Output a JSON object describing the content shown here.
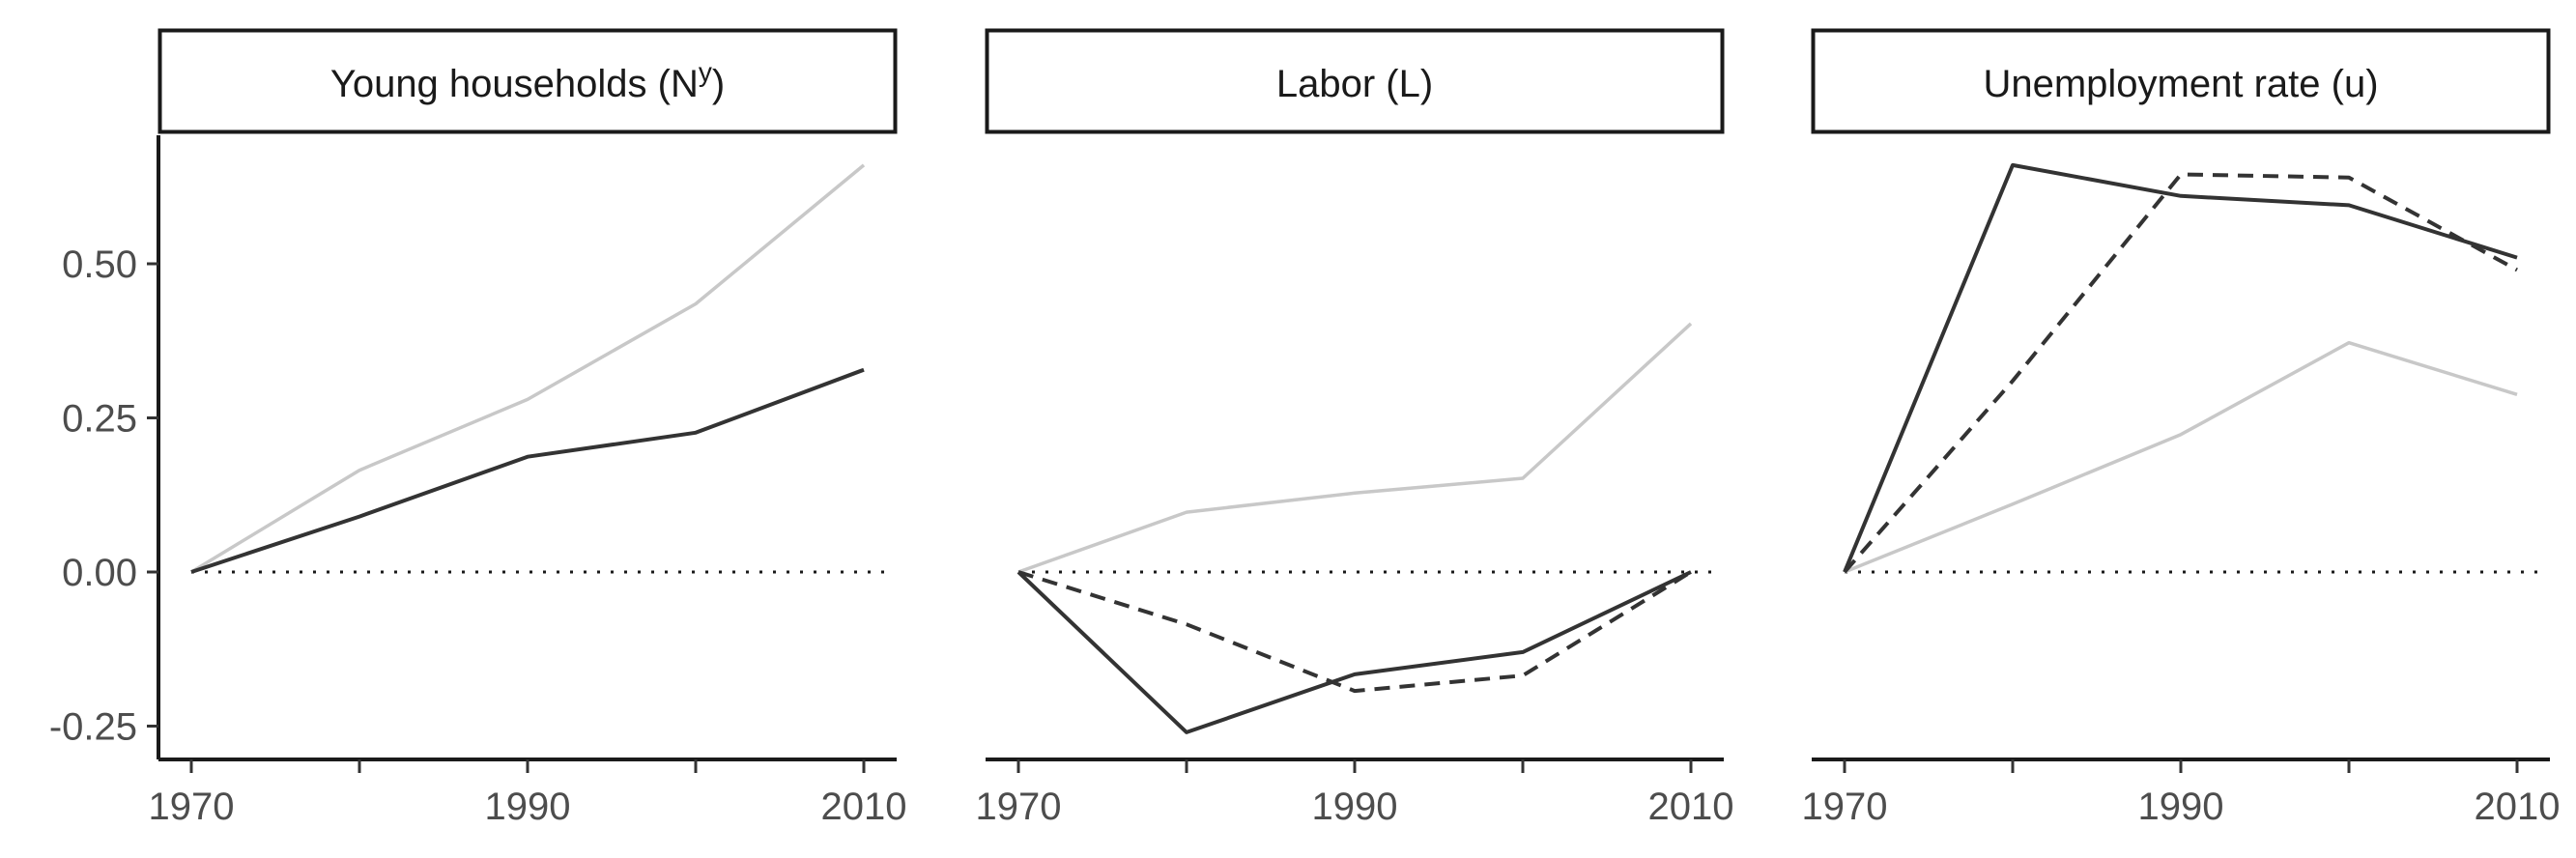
{
  "chart_data": [
    {
      "type": "line",
      "title": "Young households (N",
      "title_sup": "y",
      "title_end": ")",
      "x": [
        1970,
        1980,
        1990,
        2000,
        2010
      ],
      "xticks": [
        1970,
        1980,
        1990,
        2000,
        2010
      ],
      "xtick_labels": [
        "1970",
        "",
        "1990",
        "",
        "2010"
      ],
      "ylim": [
        -0.3,
        0.7
      ],
      "yticks": [
        -0.25,
        0,
        0.25,
        0.5
      ],
      "ytick_labels": [
        "-0.25",
        "0.00",
        "0.25",
        "0.50"
      ],
      "reference_line": 0,
      "series": [
        {
          "style": "light-solid",
          "color": "#c8c8c8",
          "values": [
            0,
            0.165,
            0.28,
            0.435,
            0.66
          ]
        },
        {
          "style": "dark-solid",
          "color": "#333333",
          "values": [
            0,
            0.09,
            0.187,
            0.226,
            0.328
          ]
        }
      ]
    },
    {
      "type": "line",
      "title": "Labor (L)",
      "x": [
        1970,
        1980,
        1990,
        2000,
        2010
      ],
      "xticks": [
        1970,
        1980,
        1990,
        2000,
        2010
      ],
      "xtick_labels": [
        "1970",
        "",
        "1990",
        "",
        "2010"
      ],
      "ylim": [
        -0.3,
        0.7
      ],
      "reference_line": 0,
      "series": [
        {
          "style": "light-solid",
          "color": "#c8c8c8",
          "values": [
            0,
            0.097,
            0.128,
            0.152,
            0.403
          ]
        },
        {
          "style": "dark-solid",
          "color": "#333333",
          "values": [
            0,
            -0.26,
            -0.166,
            -0.13,
            0
          ]
        },
        {
          "style": "dashed",
          "color": "#333333",
          "values": [
            0,
            -0.085,
            -0.193,
            -0.168,
            0
          ]
        }
      ]
    },
    {
      "type": "line",
      "title": "Unemployment rate (u)",
      "x": [
        1970,
        1980,
        1990,
        2000,
        2010
      ],
      "xticks": [
        1970,
        1980,
        1990,
        2000,
        2010
      ],
      "xtick_labels": [
        "1970",
        "",
        "1990",
        "",
        "2010"
      ],
      "ylim": [
        -0.3,
        0.7
      ],
      "reference_line": 0,
      "series": [
        {
          "style": "light-solid",
          "color": "#c8c8c8",
          "values": [
            0,
            0.11,
            0.223,
            0.372,
            0.288
          ]
        },
        {
          "style": "dark-solid",
          "color": "#333333",
          "values": [
            0,
            0.66,
            0.61,
            0.595,
            0.51
          ]
        },
        {
          "style": "dashed",
          "color": "#333333",
          "values": [
            0,
            0.31,
            0.645,
            0.64,
            0.49
          ]
        }
      ]
    }
  ]
}
